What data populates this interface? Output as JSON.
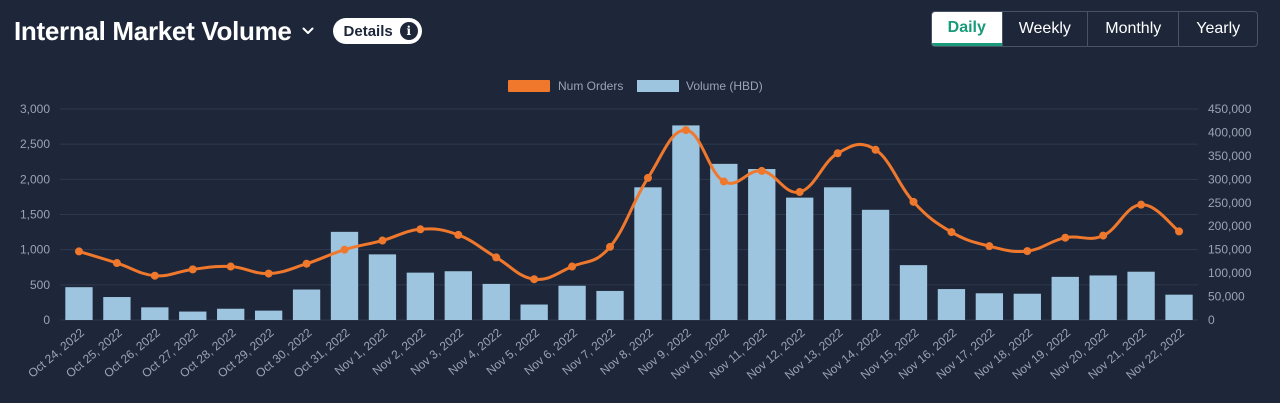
{
  "header": {
    "title": "Internal Market Volume",
    "details_label": "Details"
  },
  "tabs": [
    {
      "label": "Daily",
      "active": true
    },
    {
      "label": "Weekly",
      "active": false
    },
    {
      "label": "Monthly",
      "active": false
    },
    {
      "label": "Yearly",
      "active": false
    }
  ],
  "colors": {
    "line": "#f0782d",
    "bar": "#9ec5e0",
    "accent": "#1a9a7a",
    "background": "#1e2739"
  },
  "chart_data": {
    "type": "bar+line",
    "categories": [
      "Oct 24, 2022",
      "Oct 25, 2022",
      "Oct 26, 2022",
      "Oct 27, 2022",
      "Oct 28, 2022",
      "Oct 29, 2022",
      "Oct 30, 2022",
      "Oct 31, 2022",
      "Nov 1, 2022",
      "Nov 2, 2022",
      "Nov 3, 2022",
      "Nov 4, 2022",
      "Nov 5, 2022",
      "Nov 6, 2022",
      "Nov 7, 2022",
      "Nov 8, 2022",
      "Nov 9, 2022",
      "Nov 10, 2022",
      "Nov 11, 2022",
      "Nov 12, 2022",
      "Nov 13, 2022",
      "Nov 14, 2022",
      "Nov 15, 2022",
      "Nov 16, 2022",
      "Nov 17, 2022",
      "Nov 18, 2022",
      "Nov 19, 2022",
      "Nov 20, 2022",
      "Nov 21, 2022",
      "Nov 22, 2022"
    ],
    "series": [
      {
        "name": "Num Orders",
        "type": "line",
        "axis": "left",
        "values": [
          975,
          810,
          630,
          720,
          760,
          660,
          800,
          1000,
          1130,
          1290,
          1210,
          890,
          580,
          760,
          1040,
          2020,
          2700,
          1970,
          2120,
          1820,
          2370,
          2420,
          1680,
          1250,
          1050,
          980,
          1170,
          1200,
          1640,
          1260
        ]
      },
      {
        "name": "Volume (HBD)",
        "type": "bar",
        "axis": "right",
        "values": [
          70000,
          49000,
          27000,
          18000,
          24000,
          20000,
          65000,
          188000,
          140000,
          101000,
          104000,
          77000,
          33000,
          73000,
          62000,
          283000,
          415000,
          333000,
          322000,
          261000,
          283000,
          235000,
          117000,
          66000,
          57000,
          56000,
          92000,
          95000,
          103000,
          54000
        ]
      }
    ],
    "y_left": {
      "min": 0,
      "max": 3000,
      "ticks": [
        "0",
        "500",
        "1,000",
        "1,500",
        "2,000",
        "2,500",
        "3,000"
      ]
    },
    "y_right": {
      "min": 0,
      "max": 450000,
      "ticks": [
        "0",
        "50,000",
        "100,000",
        "150,000",
        "200,000",
        "250,000",
        "300,000",
        "350,000",
        "400,000",
        "450,000"
      ]
    },
    "legend": [
      {
        "label": "Num Orders"
      },
      {
        "label": "Volume (HBD)"
      }
    ],
    "legend_position": "top"
  }
}
